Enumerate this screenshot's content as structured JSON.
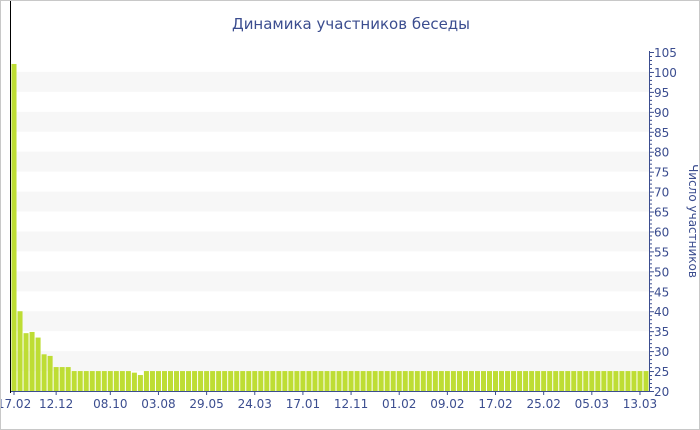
{
  "chart_data": {
    "type": "bar",
    "title": "Динамика участников беседы",
    "ylabel": "Число участников",
    "xlabel": "",
    "ylim": [
      20,
      105
    ],
    "y_ticks": [
      20,
      25,
      30,
      35,
      40,
      45,
      50,
      55,
      60,
      65,
      70,
      75,
      80,
      85,
      90,
      95,
      100,
      105
    ],
    "x_tick_labels": [
      "17.02",
      "12.12",
      "08.10",
      "03.08",
      "29.05",
      "24.03",
      "17.01",
      "12.11",
      "01.02",
      "09.02",
      "17.02",
      "25.02",
      "05.03",
      "13.03"
    ],
    "x_tick_bar_index": [
      0,
      7,
      16,
      24,
      32,
      40,
      48,
      56,
      64,
      72,
      80,
      88,
      96,
      104
    ],
    "values": [
      102,
      40,
      34.5,
      34.8,
      33.4,
      29.2,
      28.8,
      26,
      26,
      26,
      25,
      25,
      25,
      25,
      25,
      25,
      25,
      25,
      25,
      25,
      24.6,
      24,
      25,
      25,
      25,
      25,
      25,
      25,
      25,
      25,
      25,
      25,
      25,
      25,
      25,
      25,
      25,
      25,
      25,
      25,
      25,
      25,
      25,
      25,
      25,
      25,
      25,
      25,
      25,
      25,
      25,
      25,
      25,
      25,
      25,
      25,
      25,
      25,
      25,
      25,
      25,
      25,
      25,
      25,
      25,
      25,
      25,
      25,
      25,
      25,
      25,
      25,
      25,
      25,
      25,
      25,
      25,
      25,
      25,
      25,
      25,
      25,
      25,
      25,
      25,
      25,
      25,
      25,
      25,
      25,
      25,
      25,
      25,
      25,
      25,
      25,
      25,
      25,
      25,
      25,
      25,
      25,
      25,
      25,
      25,
      25
    ],
    "y_axis_position": "right",
    "grid": "alternating horizontal bands",
    "legend": "none",
    "colors": {
      "bar": "#bedd34",
      "band": "#f7f7f7",
      "axis": "#3b4d8f",
      "text": "#3b4d8f"
    }
  }
}
